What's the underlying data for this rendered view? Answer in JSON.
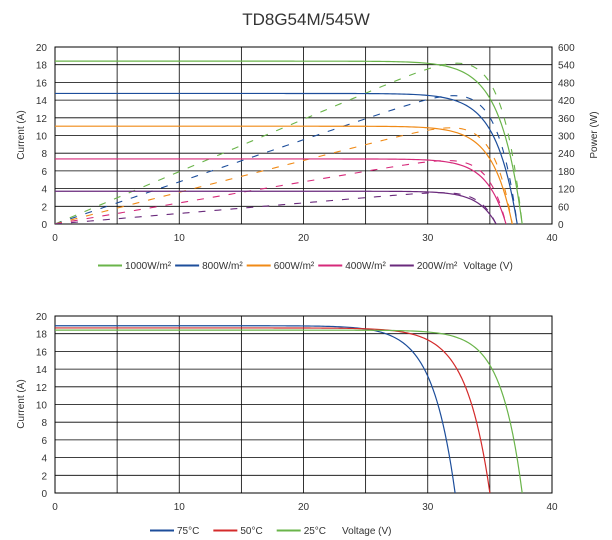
{
  "title": "TD8G54M/545W",
  "chart_data": [
    {
      "type": "line",
      "ylabel": "Current (A)",
      "y2label": "Power (W)",
      "xlim": [
        0,
        40
      ],
      "ylim": [
        0,
        20
      ],
      "y2lim": [
        0,
        600
      ],
      "xticks": [
        "0",
        "10",
        "20",
        "30",
        "40"
      ],
      "yticks": [
        "0",
        "2",
        "4",
        "6",
        "8",
        "10",
        "12",
        "14",
        "16",
        "18",
        "20"
      ],
      "y2ticks": [
        "0",
        "60",
        "120",
        "180",
        "240",
        "300",
        "360",
        "420",
        "480",
        "540",
        "600"
      ],
      "grid": true,
      "legend_position": "bottom",
      "legend_suffix": "Voltage (V)",
      "series": [
        {
          "name": "1000W/m²",
          "color": "#6ab44a",
          "isc": 18.4,
          "voc": 37.6,
          "vmp": 30.2,
          "imp": 18.0,
          "pmax": 545
        },
        {
          "name": "800W/m²",
          "color": "#1d4e9b",
          "isc": 14.75,
          "voc": 37.2,
          "vmp": 30.0,
          "imp": 14.5,
          "pmax": 435
        },
        {
          "name": "600W/m²",
          "color": "#f08a16",
          "isc": 11.05,
          "voc": 36.8,
          "vmp": 29.9,
          "imp": 10.9,
          "pmax": 326
        },
        {
          "name": "400W/m²",
          "color": "#d6297a",
          "isc": 7.35,
          "voc": 36.3,
          "vmp": 29.8,
          "imp": 7.2,
          "pmax": 215
        },
        {
          "name": "200W/m²",
          "color": "#6a2a7c",
          "isc": 3.7,
          "voc": 35.5,
          "vmp": 29.5,
          "imp": 3.6,
          "pmax": 106
        }
      ]
    },
    {
      "type": "line",
      "ylabel": "Current (A)",
      "xlim": [
        0,
        40
      ],
      "ylim": [
        0,
        20
      ],
      "xticks": [
        "0",
        "10",
        "20",
        "30",
        "40"
      ],
      "yticks": [
        "0",
        "2",
        "4",
        "6",
        "8",
        "10",
        "12",
        "14",
        "16",
        "18",
        "20"
      ],
      "grid": true,
      "legend_position": "bottom",
      "legend_suffix": "Voltage (V)",
      "series": [
        {
          "name": "75°C",
          "color": "#1d4e9b",
          "isc": 18.9,
          "voc": 32.2,
          "knee": 24.5
        },
        {
          "name": "50°C",
          "color": "#d42b2b",
          "isc": 18.65,
          "voc": 35.0,
          "knee": 27.0
        },
        {
          "name": "25°C",
          "color": "#6ab44a",
          "isc": 18.4,
          "voc": 37.6,
          "knee": 30.5
        }
      ]
    }
  ]
}
